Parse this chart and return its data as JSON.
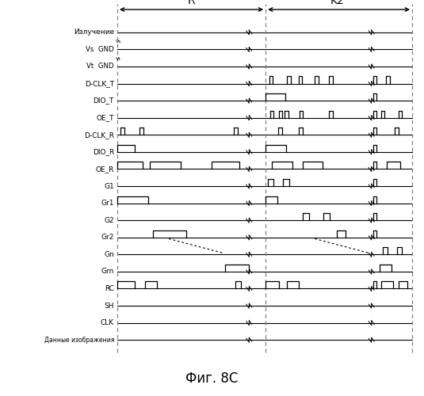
{
  "title": "Фиг. 8С",
  "signals": [
    "Излучение",
    "Vs GND",
    "Vt GND",
    "D-CLK_T",
    "DIO_T",
    "OE_T",
    "D-CLK_R",
    "DIO_R",
    "OE_R",
    "G1",
    "Gr1",
    "G2",
    "Gr2",
    "Gn",
    "Grn",
    "RC",
    "SH",
    "CLK",
    "Данные изображения"
  ],
  "R_label": "R",
  "K2_label": "K2'",
  "bg_color": "#ffffff"
}
